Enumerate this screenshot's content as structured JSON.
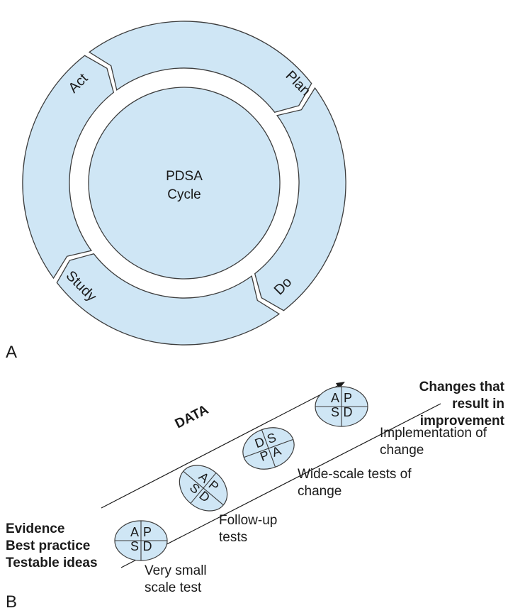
{
  "panel_a": {
    "label": "A",
    "center": [
      "PDSA",
      "Cycle"
    ],
    "segments": [
      "Plan",
      "Do",
      "Study",
      "Act"
    ],
    "colors": {
      "fill": "#cfe6f5",
      "stroke": "#3c3c3c"
    }
  },
  "panel_b": {
    "label": "B",
    "start_text": [
      "Evidence",
      "Best practice",
      "Testable ideas"
    ],
    "end_text": [
      "Changes that",
      "result in",
      "improvement"
    ],
    "arrow_label": "DATA",
    "cycles": [
      {
        "cells": [
          "A",
          "P",
          "S",
          "D"
        ]
      },
      {
        "cells": [
          "A",
          "P",
          "S",
          "D"
        ]
      },
      {
        "cells": [
          "D",
          "S",
          "P",
          "A"
        ]
      },
      {
        "cells": [
          "A",
          "P",
          "S",
          "D"
        ]
      }
    ],
    "stages": [
      [
        "Very small",
        "scale test"
      ],
      [
        "Follow-up",
        "tests"
      ],
      [
        "Wide-scale tests of",
        "change"
      ],
      [
        "Implementation of",
        "change"
      ]
    ]
  }
}
